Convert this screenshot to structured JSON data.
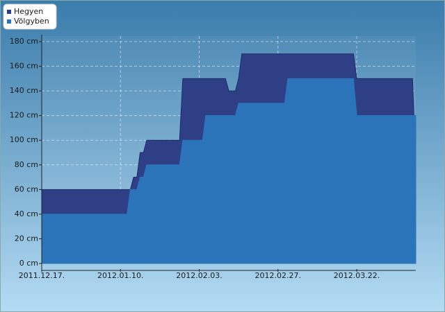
{
  "chart_data": {
    "type": "area",
    "series": [
      {
        "name": "Hegyen",
        "color": "#2e3f86",
        "x": [
          "2011-12-17",
          "2012-01-13",
          "2012-01-14",
          "2012-01-15",
          "2012-01-16",
          "2012-01-17",
          "2012-01-18",
          "2012-01-28",
          "2012-01-29",
          "2012-02-11",
          "2012-02-12",
          "2012-02-14",
          "2012-02-15",
          "2012-02-16",
          "2012-03-21",
          "2012-03-22",
          "2012-04-08",
          "2012-04-09"
        ],
        "values": [
          60,
          60,
          70,
          70,
          90,
          90,
          100,
          100,
          150,
          150,
          140,
          140,
          150,
          170,
          170,
          150,
          150,
          80
        ]
      },
      {
        "name": "Völgyben",
        "color": "#2b74ba",
        "x": [
          "2011-12-17",
          "2012-01-12",
          "2012-01-13",
          "2012-01-15",
          "2012-01-16",
          "2012-01-17",
          "2012-01-18",
          "2012-01-28",
          "2012-01-29",
          "2012-02-04",
          "2012-02-05",
          "2012-02-14",
          "2012-02-15",
          "2012-02-29",
          "2012-03-01",
          "2012-03-21",
          "2012-03-22",
          "2012-04-09"
        ],
        "values": [
          40,
          40,
          60,
          60,
          70,
          70,
          80,
          80,
          100,
          100,
          120,
          120,
          130,
          130,
          150,
          150,
          120,
          120
        ]
      }
    ],
    "xlim": [
      "2011-12-17",
      "2012-04-09"
    ],
    "xticks": [
      {
        "value": "2011-12-17",
        "label": "2011.12.17."
      },
      {
        "value": "2012-01-10",
        "label": "2012.01.10."
      },
      {
        "value": "2012-02-03",
        "label": "2012.02.03."
      },
      {
        "value": "2012-02-27",
        "label": "2012.02.27."
      },
      {
        "value": "2012-03-22",
        "label": "2012.03.22."
      }
    ],
    "ylim": [
      0,
      180
    ],
    "yticks": [
      {
        "value": 0,
        "label": "0 cm"
      },
      {
        "value": 20,
        "label": "20 cm"
      },
      {
        "value": 40,
        "label": "40 cm"
      },
      {
        "value": 60,
        "label": "60 cm"
      },
      {
        "value": 80,
        "label": "80 cm"
      },
      {
        "value": 100,
        "label": "100 cm"
      },
      {
        "value": 120,
        "label": "120 cm"
      },
      {
        "value": 140,
        "label": "140 cm"
      },
      {
        "value": 160,
        "label": "160 cm"
      },
      {
        "value": 180,
        "label": "180 cm"
      }
    ],
    "grid": true,
    "legend": "top-left"
  }
}
